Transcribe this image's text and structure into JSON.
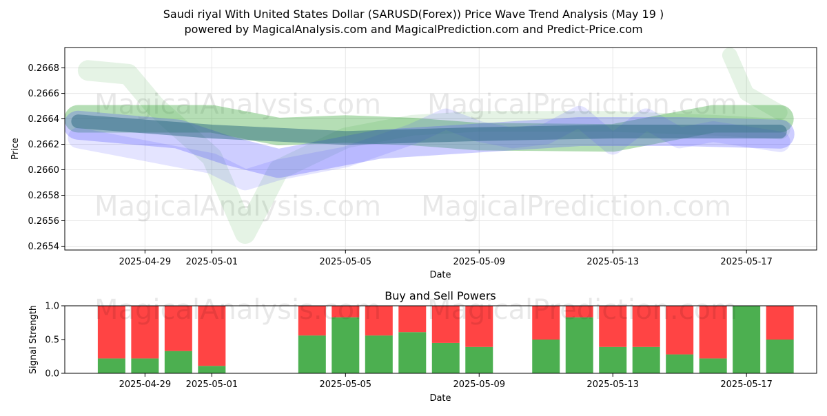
{
  "figure": {
    "title_line1": "Saudi riyal With United States Dollar (SARUSD(Forex)) Price Wave Trend Analysis (May 19 )",
    "title_line2": "powered by MagicalAnalysis.com and MagicalPrediction.com and Predict-Price.com"
  },
  "watermarks": {
    "top_row": [
      "MagicalAnalysis.com",
      "MagicalPrediction.com"
    ],
    "mid_row": [
      "MagicalAnalysis.com",
      "MagicalPrediction.com"
    ],
    "bottom_row": [
      "MagicalAnalysis.com",
      "MagicalPrediction.com"
    ]
  },
  "chart_data": [
    {
      "type": "line",
      "title": "",
      "xlabel": "Date",
      "ylabel": "Price",
      "x_ticks": [
        "2025-04-29",
        "2025-05-01",
        "2025-05-05",
        "2025-05-09",
        "2025-05-13",
        "2025-05-17"
      ],
      "y_ticks": [
        "0.2654",
        "0.2656",
        "0.2658",
        "0.2660",
        "0.2662",
        "0.2664",
        "0.2666",
        "0.2668"
      ],
      "xlim": [
        "2025-04-26.6",
        "2025-05-19.1"
      ],
      "ylim": [
        0.26537,
        0.26696
      ],
      "grid": true,
      "colors": {
        "green": "#2ca02c",
        "blue": "#4b4bff",
        "teal": "#1f5f7a"
      },
      "series": [
        {
          "color": "green",
          "points": [
            [
              "2025-04-27.3",
              0.26678
            ],
            [
              "2025-04-28.5",
              0.26675
            ],
            [
              "2025-04-29.3",
              0.2665
            ],
            [
              "2025-05-01",
              0.2661
            ],
            [
              "2025-05-02",
              0.2655
            ],
            [
              "2025-05-03",
              0.266
            ],
            [
              "2025-05-05",
              0.26625
            ],
            [
              "2025-05-07",
              0.26635
            ],
            [
              "2025-05-09",
              0.26638
            ],
            [
              "2025-05-13",
              0.26638
            ],
            [
              "2025-05-16",
              0.26635
            ],
            [
              "2025-05-18",
              0.26632
            ]
          ]
        },
        {
          "color": "green",
          "points": [
            [
              "2025-04-27",
              0.2664
            ],
            [
              "2025-05-01",
              0.2664
            ],
            [
              "2025-05-03",
              0.2663
            ],
            [
              "2025-05-05",
              0.26632
            ],
            [
              "2025-05-07",
              0.2663
            ],
            [
              "2025-05-09",
              0.26626
            ],
            [
              "2025-05-13",
              0.26625
            ],
            [
              "2025-05-16",
              0.2664
            ],
            [
              "2025-05-18",
              0.2664
            ]
          ]
        },
        {
          "color": "green",
          "points": [
            [
              "2025-05-16.5",
              0.2669
            ],
            [
              "2025-05-17",
              0.2666
            ],
            [
              "2025-05-18",
              0.26645
            ]
          ]
        },
        {
          "color": "blue",
          "points": [
            [
              "2025-04-27",
              0.26625
            ],
            [
              "2025-04-29",
              0.26615
            ],
            [
              "2025-05-01",
              0.26605
            ],
            [
              "2025-05-02",
              0.26592
            ],
            [
              "2025-05-03",
              0.266
            ],
            [
              "2025-05-05",
              0.2661
            ],
            [
              "2025-05-07",
              0.26628
            ],
            [
              "2025-05-08",
              0.2664
            ],
            [
              "2025-05-09",
              0.2663
            ],
            [
              "2025-05-10",
              0.26625
            ],
            [
              "2025-05-11",
              0.26628
            ],
            [
              "2025-05-12",
              0.26642
            ],
            [
              "2025-05-13",
              0.2662
            ],
            [
              "2025-05-14",
              0.2664
            ],
            [
              "2025-05-15",
              0.26625
            ],
            [
              "2025-05-16",
              0.2663
            ],
            [
              "2025-05-18",
              0.26622
            ]
          ]
        },
        {
          "color": "blue",
          "points": [
            [
              "2025-04-27",
              0.26635
            ],
            [
              "2025-04-30",
              0.26628
            ],
            [
              "2025-05-01.5",
              0.26615
            ],
            [
              "2025-05-03",
              0.26605
            ],
            [
              "2025-05-06",
              0.2662
            ],
            [
              "2025-05-09",
              0.26625
            ],
            [
              "2025-05-12",
              0.2663
            ],
            [
              "2025-05-15",
              0.2663
            ],
            [
              "2025-05-18",
              0.26628
            ]
          ]
        },
        {
          "color": "teal",
          "points": [
            [
              "2025-04-27",
              0.26638
            ],
            [
              "2025-05-01",
              0.2663
            ],
            [
              "2025-05-05",
              0.26625
            ],
            [
              "2025-05-09",
              0.26628
            ],
            [
              "2025-05-13",
              0.2663
            ],
            [
              "2025-05-18",
              0.2663
            ]
          ]
        }
      ]
    },
    {
      "type": "bar",
      "title": "Buy and Sell Powers",
      "xlabel": "Date",
      "ylabel": "Signal Strength",
      "x_ticks": [
        "2025-04-29",
        "2025-05-01",
        "2025-05-05",
        "2025-05-09",
        "2025-05-13",
        "2025-05-17"
      ],
      "y_ticks": [
        "0.0",
        "0.5",
        "1.0"
      ],
      "ylim": [
        0,
        1
      ],
      "colors": {
        "buy": "#4caf50",
        "sell": "#ff4444"
      },
      "series": [
        {
          "name": "buy",
          "values": [
            0.22,
            0.22,
            0.33,
            0.11,
            0.56,
            0.83,
            0.56,
            0.61,
            0.45,
            0.39,
            0.5,
            0.83,
            0.39,
            0.39,
            0.28,
            0.22,
            1.0,
            0.5
          ]
        },
        {
          "name": "sell",
          "values": [
            0.78,
            0.78,
            0.67,
            0.89,
            0.44,
            0.17,
            0.44,
            0.39,
            0.55,
            0.61,
            0.5,
            0.17,
            0.61,
            0.61,
            0.72,
            0.78,
            0.0,
            0.5
          ]
        }
      ],
      "categories": [
        "2025-04-28",
        "2025-04-29",
        "2025-04-30",
        "2025-05-01",
        "2025-05-04",
        "2025-05-05",
        "2025-05-06",
        "2025-05-07",
        "2025-05-08",
        "2025-05-09",
        "2025-05-11",
        "2025-05-12",
        "2025-05-13",
        "2025-05-14",
        "2025-05-15",
        "2025-05-16",
        "2025-05-17",
        "2025-05-18"
      ]
    }
  ]
}
